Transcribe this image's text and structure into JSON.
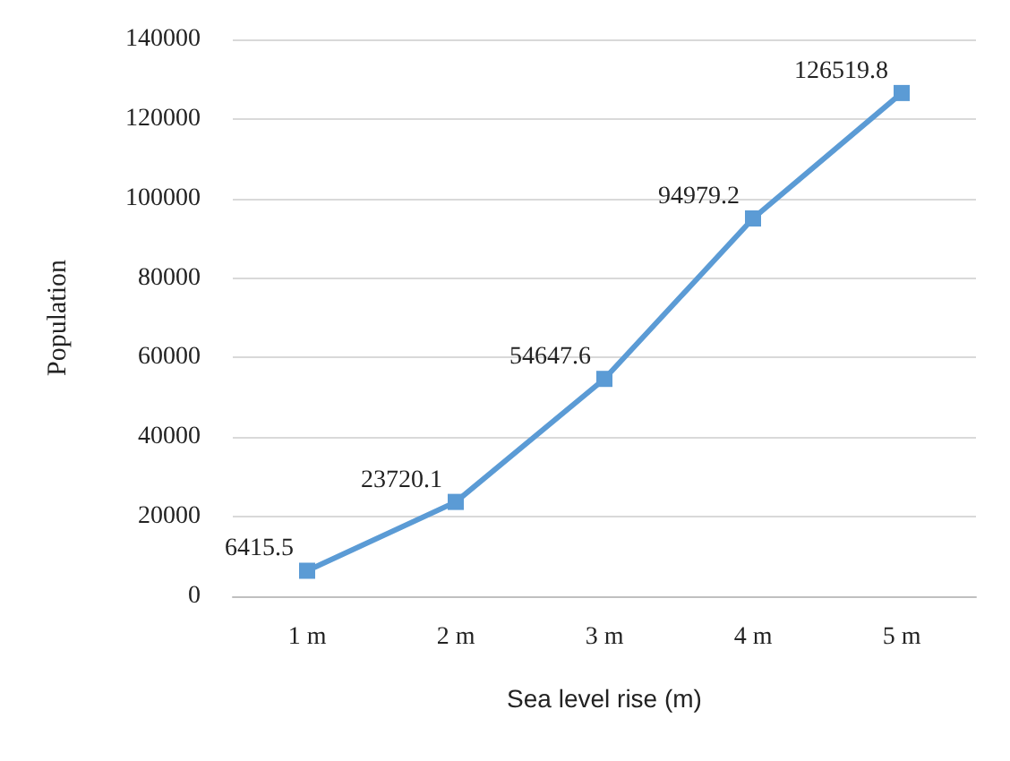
{
  "chart_data": {
    "type": "line",
    "xlabel": "Sea level rise (m)",
    "ylabel": "Population",
    "categories": [
      "1 m",
      "2 m",
      "3 m",
      "4 m",
      "5 m"
    ],
    "series": [
      {
        "color": "#5b9bd5",
        "values": [
          6415.5,
          23720.1,
          54647.6,
          94979.2,
          126519.8
        ]
      }
    ],
    "ylim": [
      0,
      140000
    ],
    "yticks": [
      0,
      20000,
      40000,
      60000,
      80000,
      100000,
      120000,
      140000
    ],
    "grid": "y",
    "marker": "square",
    "line_style": "solid",
    "data_labels": true
  }
}
